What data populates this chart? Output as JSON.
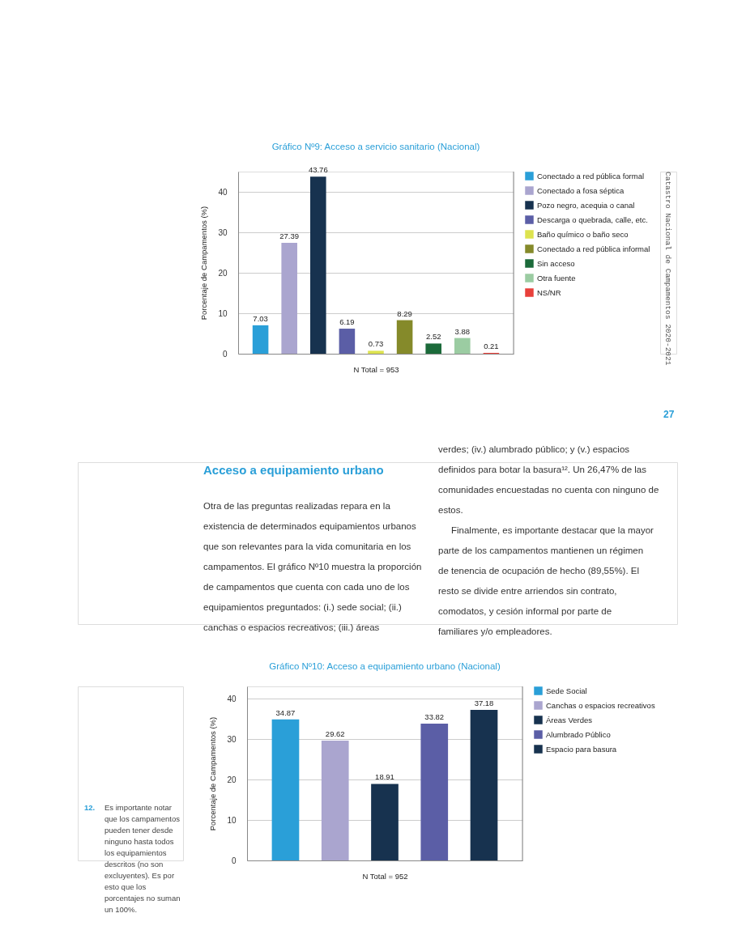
{
  "chart_data": [
    {
      "type": "bar",
      "title": "Gráfico Nº9: Acceso a servicio sanitario (Nacional)",
      "xlabel": "N Total = 953",
      "ylabel": "Porcentaje de Campamentos (%)",
      "categories": [
        null,
        null,
        null,
        null,
        null,
        null,
        null,
        null,
        null
      ],
      "series": [
        {
          "name": "Conectado a red pública formal",
          "color": "#2a9fd8",
          "values": [
            7.03,
            null,
            null,
            null,
            null,
            null,
            null,
            null,
            null
          ]
        },
        {
          "name": "Conectado a fosa séptica",
          "color": "#aaa5cf",
          "values": [
            null,
            27.39,
            null,
            null,
            null,
            null,
            null,
            null,
            null
          ]
        },
        {
          "name": "Pozo negro, acequia o canal",
          "color": "#17324f",
          "values": [
            null,
            null,
            43.76,
            null,
            null,
            null,
            null,
            null,
            null
          ]
        },
        {
          "name": "Descarga o quebrada, calle, etc.",
          "color": "#5b5ea6",
          "values": [
            null,
            null,
            null,
            6.19,
            null,
            null,
            null,
            null,
            null
          ]
        },
        {
          "name": "Baño químico o baño seco",
          "color": "#dde34f",
          "values": [
            null,
            null,
            null,
            null,
            0.73,
            null,
            null,
            null,
            null
          ]
        },
        {
          "name": "Conectado a red pública informal",
          "color": "#858a2a",
          "values": [
            null,
            null,
            null,
            null,
            null,
            8.29,
            null,
            null,
            null
          ]
        },
        {
          "name": "Sin acceso",
          "color": "#1b6a3a",
          "values": [
            null,
            null,
            null,
            null,
            null,
            null,
            2.52,
            null,
            null
          ]
        },
        {
          "name": "Otra fuente",
          "color": "#9bcca2",
          "values": [
            null,
            null,
            null,
            null,
            null,
            null,
            null,
            3.88,
            null
          ]
        },
        {
          "name": "NS/NR",
          "color": "#e8403a",
          "values": [
            null,
            null,
            null,
            null,
            null,
            null,
            null,
            null,
            0.21
          ]
        }
      ],
      "ylim": [
        0,
        45
      ],
      "yticks": [
        0,
        10,
        20,
        30,
        40
      ],
      "grid": "y",
      "legend": "right",
      "tick_labels": "y",
      "data_labels": true,
      "annotations": [
        "Catastro Nacional de Campamentos 2020-2021",
        "27"
      ]
    },
    {
      "type": "bar",
      "title": "Gráfico Nº10: Acceso a equipamiento urbano (Nacional)",
      "xlabel": "N Total = 952",
      "ylabel": "Porcentaje de Campamentos (%)",
      "categories": [
        null,
        null,
        null,
        null,
        null
      ],
      "series": [
        {
          "name": "Sede Social",
          "color": "#2a9fd8",
          "values": [
            34.87,
            null,
            null,
            null,
            null
          ]
        },
        {
          "name": "Canchas o espacios recreativos",
          "color": "#aaa5cf",
          "values": [
            null,
            29.62,
            null,
            null,
            null
          ]
        },
        {
          "name": "Áreas Verdes",
          "color": "#17324f",
          "values": [
            null,
            null,
            18.91,
            null,
            null
          ]
        },
        {
          "name": "Alumbrado Público",
          "color": "#5b5ea6",
          "values": [
            null,
            null,
            null,
            33.82,
            null
          ]
        },
        {
          "name": "Espacio para basura",
          "color": "#17324f",
          "values": [
            null,
            null,
            null,
            null,
            37.18
          ]
        }
      ],
      "ylim": [
        0,
        43
      ],
      "yticks": [
        0,
        10,
        20,
        30,
        40
      ],
      "grid": "y",
      "legend": "right",
      "tick_labels": "y",
      "data_labels": true,
      "annotations": [
        "Acceso a equipamiento urbano",
        "Otra de las preguntas realizadas repara en la existencia de determinados equipamientos urbanos que son relevantes para la vida comunitaria en los campamentos. El gráfico Nº10 muestra la proporción de campamentos que cuenta con cada uno de los equipamientos preguntados: (i.) sede social; (ii.) canchas o espacios recreativos; (iii.) áreas verdes; (iv.) alumbrado público; y (v.) espacios definidos para botar la basura¹². Un 26,47% de las comunidades encuestadas no cuenta con ninguno de estos.",
        "Finalmente, es importante destacar que la mayor parte de los campamentos mantienen un régimen de tenencia de ocupación de hecho (89,55%). El resto se divide entre arriendos sin contrato, comodatos, y cesión informal por parte de familiares y/o empleadores.",
        "12. Es importante notar que los campamentos pueden tener desde ninguno hasta todos los equipamientos descritos (no son excluyentes). Es por esto que los porcentajes no suman un 100%."
      ]
    }
  ]
}
